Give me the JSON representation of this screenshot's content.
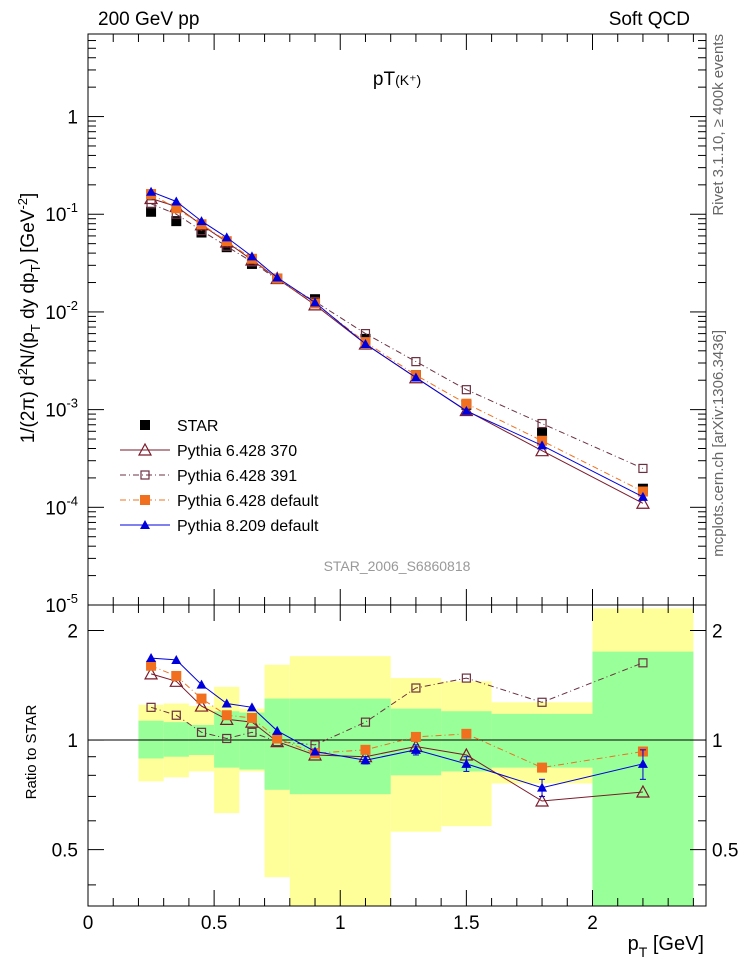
{
  "header": {
    "left": "200 GeV pp",
    "right": "Soft QCD"
  },
  "side_labels": {
    "rivet": "Rivet 3.1.10, ≥ 400k events",
    "mcplots": "mcplots.cern.ch [arXiv:1306.3436]"
  },
  "chart_data": [
    {
      "type": "scatter",
      "title": "pT(K⁺)",
      "title_main": "pT",
      "title_sub": "(K⁺)",
      "ylabel": "1/(2π) d²N/(p_T dy dp_T) [GeV⁻²]",
      "ylabel_parts": {
        "p1": "1/(2",
        "pi": "π",
        "p2": ") d",
        "sq": "2",
        "p3": "N/(p",
        "t1": "T",
        "p4": " dy dp",
        "t2": "T",
        "p5": ") [GeV",
        "exp": "-2",
        "p6": "]"
      },
      "xlim": [
        0,
        2.45
      ],
      "ylim": [
        1e-05,
        7
      ],
      "yscale": "log",
      "ytick_labels": [
        {
          "value": 1e-05,
          "base": "10",
          "exp": "-5"
        },
        {
          "value": 0.0001,
          "base": "10",
          "exp": "-4"
        },
        {
          "value": 0.001,
          "base": "10",
          "exp": "-3"
        },
        {
          "value": 0.01,
          "base": "10",
          "exp": "-2"
        },
        {
          "value": 0.1,
          "base": "10",
          "exp": "-1"
        },
        {
          "value": 1,
          "base": "1",
          "exp": ""
        }
      ],
      "watermark": "STAR_2006_S6860818",
      "x": [
        0.25,
        0.35,
        0.45,
        0.55,
        0.65,
        0.75,
        0.9,
        1.1,
        1.3,
        1.5,
        1.8,
        2.2
      ],
      "series": [
        {
          "name": "STAR",
          "color": "#000000",
          "marker": "square-filled",
          "line": "none",
          "values": [
            0.106,
            0.085,
            0.065,
            0.046,
            0.031,
            0.022,
            0.0135,
            0.0053,
            0.00225,
            0.00112,
            0.00058,
            0.000155
          ]
        },
        {
          "name": "Pythia 6.428 370",
          "color": "#7a1a2a",
          "marker": "triangle-open",
          "line": "solid",
          "values": [
            0.145,
            0.12,
            0.078,
            0.052,
            0.034,
            0.022,
            0.0118,
            0.0047,
            0.00212,
            0.00098,
            0.00038,
            0.00011
          ]
        },
        {
          "name": "Pythia 6.428 391",
          "color": "#6b3040",
          "marker": "square-open",
          "line": "dashdot",
          "values": [
            0.128,
            0.1,
            0.068,
            0.047,
            0.0325,
            0.0215,
            0.0128,
            0.006,
            0.0031,
            0.0016,
            0.00072,
            0.00025
          ]
        },
        {
          "name": "Pythia 6.428 default",
          "color": "#f07020",
          "marker": "square-filled",
          "line": "dashdot",
          "values": [
            0.161,
            0.115,
            0.079,
            0.053,
            0.035,
            0.022,
            0.0122,
            0.0049,
            0.00225,
            0.00115,
            0.00048,
            0.000145
          ]
        },
        {
          "name": "Pythia 8.209 default",
          "color": "#0000dd",
          "marker": "triangle-filled",
          "line": "solid",
          "values": [
            0.17,
            0.135,
            0.085,
            0.058,
            0.037,
            0.0225,
            0.0125,
            0.0047,
            0.00213,
            0.00097,
            0.00043,
            0.000128
          ]
        }
      ]
    },
    {
      "type": "line",
      "ylabel": "Ratio to STAR",
      "xlabel": "p_T [GeV]",
      "xlabel_parts": {
        "main": "p",
        "sub": "T",
        "unit": " [GeV]"
      },
      "xlim": [
        0,
        2.45
      ],
      "ylim": [
        0.35,
        2.35
      ],
      "yscale": "log",
      "xtick_labels": [
        "0",
        "0.5",
        "1",
        "1.5",
        "2"
      ],
      "ytick_labels": [
        "0.5",
        "1",
        "2"
      ],
      "reference_line": 1,
      "bands": [
        {
          "x0": 0.2,
          "x1": 0.3,
          "green": [
            0.89,
            1.13
          ],
          "yellow": [
            0.77,
            1.25
          ]
        },
        {
          "x0": 0.3,
          "x1": 0.4,
          "green": [
            0.9,
            1.12
          ],
          "yellow": [
            0.79,
            1.26
          ]
        },
        {
          "x0": 0.4,
          "x1": 0.5,
          "green": [
            0.91,
            1.1
          ],
          "yellow": [
            0.82,
            1.24
          ]
        },
        {
          "x0": 0.5,
          "x1": 0.6,
          "green": [
            0.84,
            1.2
          ],
          "yellow": [
            0.63,
            1.4
          ]
        },
        {
          "x0": 0.6,
          "x1": 0.7,
          "green": [
            0.83,
            1.19
          ],
          "yellow": [
            0.82,
            1.22
          ]
        },
        {
          "x0": 0.7,
          "x1": 0.8,
          "green": [
            0.73,
            1.3
          ],
          "yellow": [
            0.42,
            1.61
          ]
        },
        {
          "x0": 0.8,
          "x1": 1.2,
          "green": [
            0.71,
            1.3
          ],
          "yellow": [
            0.35,
            1.7
          ]
        },
        {
          "x0": 1.2,
          "x1": 1.4,
          "green": [
            0.8,
            1.22
          ],
          "yellow": [
            0.56,
            1.48
          ]
        },
        {
          "x0": 1.4,
          "x1": 1.6,
          "green": [
            0.82,
            1.2
          ],
          "yellow": [
            0.58,
            1.45
          ]
        },
        {
          "x0": 1.6,
          "x1": 2.0,
          "green": [
            0.84,
            1.18
          ],
          "yellow": [
            0.76,
            1.27
          ]
        },
        {
          "x0": 2.0,
          "x1": 2.4,
          "green": [
            0.35,
            1.75
          ],
          "yellow": [
            0.35,
            2.3
          ]
        }
      ],
      "x": [
        0.25,
        0.35,
        0.45,
        0.55,
        0.65,
        0.75,
        0.9,
        1.1,
        1.3,
        1.5,
        1.8,
        2.2
      ],
      "series": [
        {
          "name": "Pythia 6.428 370",
          "color": "#7a1a2a",
          "marker": "triangle-open",
          "line": "solid",
          "values": [
            1.52,
            1.45,
            1.24,
            1.14,
            1.12,
            0.99,
            0.91,
            0.9,
            0.96,
            0.91,
            0.68,
            0.72
          ]
        },
        {
          "name": "Pythia 6.428 391",
          "color": "#6b3040",
          "marker": "square-open",
          "line": "dashdot",
          "values": [
            1.23,
            1.17,
            1.05,
            1.01,
            1.05,
            0.99,
            0.97,
            1.12,
            1.39,
            1.48,
            1.27,
            1.63
          ]
        },
        {
          "name": "Pythia 6.428 default",
          "color": "#f07020",
          "marker": "square-filled",
          "line": "dashdot",
          "values": [
            1.6,
            1.5,
            1.3,
            1.17,
            1.15,
            1.01,
            0.92,
            0.94,
            1.02,
            1.04,
            0.84,
            0.93
          ]
        },
        {
          "name": "Pythia 8.209 default",
          "color": "#0000dd",
          "marker": "triangle-filled",
          "line": "solid",
          "values": [
            1.68,
            1.66,
            1.42,
            1.26,
            1.23,
            1.06,
            0.93,
            0.88,
            0.94,
            0.86,
            0.74,
            0.86
          ],
          "errors": [
            0.0,
            0.0,
            0.0,
            0.0,
            0.0,
            0.0,
            0.0,
            0.02,
            0.03,
            0.04,
            0.04,
            0.08
          ]
        }
      ]
    }
  ]
}
